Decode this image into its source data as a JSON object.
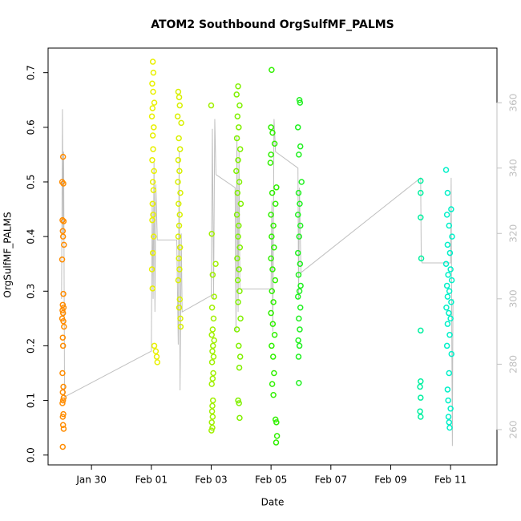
{
  "chart_data": {
    "type": "scatter",
    "title": "ATOM2 Southbound OrgSulfMF_PALMS",
    "xlabel": "Date",
    "ylabel": "OrgSulfMF_PALMS",
    "xlim": [
      28.55,
      43.55
    ],
    "xticks": [
      {
        "value": 30,
        "label": "Jan 30"
      },
      {
        "value": 32,
        "label": "Feb 01"
      },
      {
        "value": 34,
        "label": "Feb 03"
      },
      {
        "value": 36,
        "label": "Feb 05"
      },
      {
        "value": 38,
        "label": "Feb 07"
      },
      {
        "value": 40,
        "label": "Feb 09"
      },
      {
        "value": 42,
        "label": "Feb 11"
      }
    ],
    "ylim": [
      -0.018,
      0.745
    ],
    "yticks": [
      {
        "value": 0,
        "label": "0.0"
      },
      0.1,
      0.2,
      0.3,
      0.4,
      0.5,
      0.6,
      0.7
    ],
    "y2lim": [
      249.2,
      376.7
    ],
    "y2ticks": [
      260,
      280,
      300,
      320,
      340,
      360
    ],
    "y2color": "#c0c0c0",
    "series": [
      {
        "type": "line",
        "axis": "y2",
        "color": "#c0c0c0",
        "x": [
          29.0,
          29.03,
          29.05,
          29.07,
          29.1,
          32.0,
          32.03,
          32.06,
          32.09,
          32.12,
          32.15,
          32.2,
          32.85,
          32.9,
          32.93,
          32.96,
          33.0,
          33.03,
          34.0,
          34.04,
          34.08,
          34.12,
          34.16,
          34.8,
          34.83,
          34.86,
          34.9,
          34.93,
          34.96,
          36.0,
          36.03,
          36.06,
          36.1,
          36.15,
          36.9,
          36.92,
          36.95,
          37.0,
          41.0,
          41.02,
          41.05,
          42.0,
          42.02,
          42.04,
          42.06,
          42.08
        ],
        "values": [
          300,
          358,
          320,
          345,
          270,
          284,
          330,
          300,
          342,
          296,
          335,
          318,
          318,
          286,
          345,
          272,
          320,
          296,
          301,
          352,
          300,
          355,
          338,
          334,
          290,
          350,
          296,
          345,
          303,
          303,
          330,
          290,
          355,
          345,
          340,
          300,
          334,
          308,
          337,
          312,
          311,
          311,
          337,
          290,
          255,
          300
        ]
      },
      {
        "color": "#ff8c00",
        "x": [
          29.05,
          29.02,
          29.06,
          29.03,
          29.07,
          29.04,
          29.05,
          29.08,
          29.02,
          29.06,
          29.04,
          29.07,
          29.03,
          29.05,
          29.02,
          29.06,
          29.08,
          29.04,
          29.05,
          29.03,
          29.06,
          29.04,
          29.07,
          29.05,
          29.03,
          29.06,
          29.04,
          29.05,
          29.07,
          29.04
        ],
        "values": [
          0.546,
          0.5,
          0.497,
          0.43,
          0.428,
          0.41,
          0.4,
          0.385,
          0.358,
          0.295,
          0.275,
          0.27,
          0.265,
          0.26,
          0.25,
          0.245,
          0.235,
          0.215,
          0.2,
          0.15,
          0.125,
          0.115,
          0.105,
          0.1,
          0.095,
          0.075,
          0.07,
          0.055,
          0.048,
          0.015
        ]
      },
      {
        "color": "#e8f000",
        "x": [
          32.05,
          32.07,
          32.03,
          32.06,
          32.1,
          32.04,
          32.02,
          32.08,
          32.05,
          32.06,
          32.03,
          32.09,
          32.05,
          32.07,
          32.04,
          32.06,
          32.03,
          32.08,
          32.05,
          32.02,
          32.04,
          32.1,
          32.15,
          32.18,
          32.2
        ],
        "values": [
          0.72,
          0.7,
          0.68,
          0.665,
          0.645,
          0.635,
          0.62,
          0.6,
          0.585,
          0.56,
          0.54,
          0.52,
          0.5,
          0.485,
          0.46,
          0.44,
          0.43,
          0.4,
          0.37,
          0.34,
          0.305,
          0.2,
          0.19,
          0.18,
          0.17
        ]
      },
      {
        "color": "#d8f000",
        "x": [
          32.9,
          32.93,
          32.95,
          32.88,
          33.0,
          32.92,
          32.96,
          32.9,
          32.94,
          32.89,
          32.97,
          32.91,
          32.95,
          32.93,
          32.9,
          32.96,
          32.92,
          32.94,
          32.9,
          32.95,
          32.93,
          32.97,
          32.98
        ],
        "values": [
          0.665,
          0.655,
          0.64,
          0.62,
          0.608,
          0.58,
          0.56,
          0.54,
          0.52,
          0.5,
          0.48,
          0.46,
          0.44,
          0.42,
          0.4,
          0.38,
          0.36,
          0.34,
          0.32,
          0.285,
          0.27,
          0.25,
          0.235
        ]
      },
      {
        "color": "#a0f000",
        "x": [
          34.0,
          34.02,
          34.15,
          34.05,
          34.1,
          34.03,
          34.08,
          34.05,
          34.02,
          34.1,
          34.06,
          34.04,
          34.08,
          34.03,
          34.07,
          34.05,
          34.02,
          34.06,
          34.04,
          34.03,
          34.05,
          34.02,
          34.04,
          34.01
        ],
        "values": [
          0.64,
          0.405,
          0.35,
          0.33,
          0.29,
          0.27,
          0.25,
          0.23,
          0.22,
          0.21,
          0.2,
          0.19,
          0.18,
          0.17,
          0.15,
          0.14,
          0.13,
          0.1,
          0.09,
          0.08,
          0.07,
          0.06,
          0.05,
          0.045
        ]
      },
      {
        "color": "#80f000",
        "x": [
          34.9,
          34.85,
          34.95,
          34.88,
          34.92,
          34.86,
          34.97,
          34.9,
          34.84,
          34.94,
          34.88,
          34.99,
          34.86,
          34.92,
          34.9,
          34.96,
          34.87,
          34.93,
          34.89,
          34.95,
          34.9,
          34.98,
          34.86,
          34.92,
          34.97,
          34.94,
          34.9,
          34.93,
          34.95
        ],
        "values": [
          0.675,
          0.66,
          0.64,
          0.62,
          0.6,
          0.58,
          0.56,
          0.54,
          0.52,
          0.5,
          0.48,
          0.46,
          0.44,
          0.42,
          0.4,
          0.38,
          0.36,
          0.34,
          0.32,
          0.3,
          0.28,
          0.25,
          0.23,
          0.2,
          0.18,
          0.16,
          0.1,
          0.095,
          0.068
        ]
      },
      {
        "color": "#30f000",
        "x": [
          36.02,
          36.0,
          36.05,
          36.12,
          36.0,
          35.98,
          36.18,
          36.04,
          36.15,
          36.0,
          36.08,
          36.02,
          36.1,
          36.0,
          36.05,
          36.14,
          36.03,
          36.08,
          36.0,
          36.06,
          36.12,
          36.02,
          36.07,
          36.1,
          36.04,
          36.08,
          36.15,
          36.18,
          36.2,
          36.17
        ],
        "values": [
          0.705,
          0.6,
          0.59,
          0.57,
          0.55,
          0.535,
          0.49,
          0.48,
          0.46,
          0.44,
          0.42,
          0.4,
          0.38,
          0.36,
          0.34,
          0.32,
          0.3,
          0.28,
          0.26,
          0.24,
          0.22,
          0.2,
          0.18,
          0.15,
          0.13,
          0.11,
          0.065,
          0.06,
          0.035,
          0.023
        ]
      },
      {
        "color": "#20f020",
        "x": [
          36.95,
          36.97,
          36.9,
          36.98,
          36.93,
          37.02,
          36.92,
          36.96,
          36.9,
          36.98,
          36.94,
          36.9,
          36.97,
          36.92,
          36.99,
          36.95,
          36.9,
          36.98,
          36.93,
          36.96,
          36.91,
          36.95,
          36.92,
          36.93
        ],
        "values": [
          0.65,
          0.645,
          0.6,
          0.565,
          0.55,
          0.5,
          0.48,
          0.46,
          0.44,
          0.42,
          0.4,
          0.37,
          0.35,
          0.33,
          0.31,
          0.3,
          0.29,
          0.27,
          0.25,
          0.23,
          0.21,
          0.2,
          0.18,
          0.132
        ]
      },
      {
        "color": "#00f0a0",
        "x": [
          41.0,
          41.0,
          41.0,
          41.02,
          41.0,
          41.0,
          40.98,
          41.0,
          40.98,
          41.0
        ],
        "values": [
          0.502,
          0.48,
          0.435,
          0.36,
          0.228,
          0.135,
          0.125,
          0.105,
          0.08,
          0.07
        ]
      },
      {
        "color": "#00f0c8",
        "x": [
          41.85,
          41.9,
          42.02,
          41.88,
          41.95,
          42.05,
          41.9,
          41.98,
          41.85,
          42.0,
          41.92,
          42.04,
          41.88,
          41.96,
          41.9,
          42.02,
          41.86,
          41.94,
          42.0,
          41.9,
          41.97,
          41.88,
          42.03,
          41.95,
          41.9,
          41.92,
          42.0,
          41.93,
          41.95,
          41.97
        ],
        "values": [
          0.522,
          0.48,
          0.45,
          0.44,
          0.42,
          0.4,
          0.385,
          0.37,
          0.35,
          0.34,
          0.33,
          0.32,
          0.31,
          0.3,
          0.29,
          0.28,
          0.27,
          0.26,
          0.25,
          0.24,
          0.22,
          0.2,
          0.185,
          0.15,
          0.12,
          0.1,
          0.085,
          0.07,
          0.06,
          0.05
        ]
      }
    ]
  }
}
